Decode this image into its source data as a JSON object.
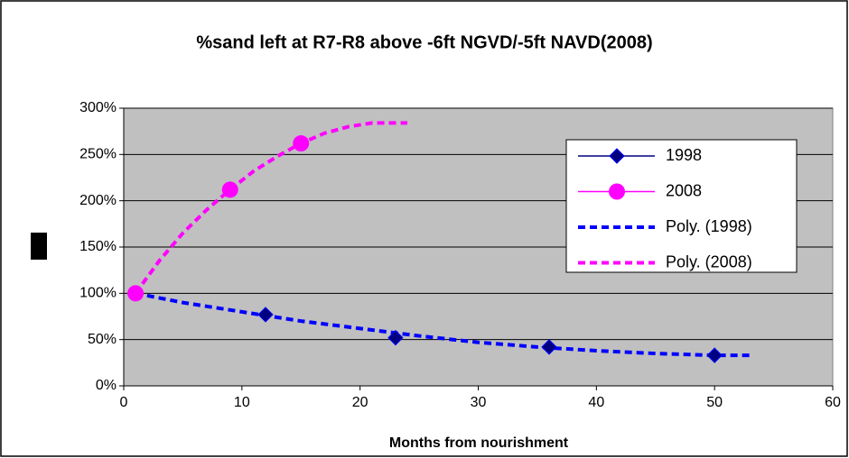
{
  "chart_data": {
    "type": "scatter",
    "title": "%sand left at R7-R8 above -6ft NGVD/-5ft NAVD(2008)",
    "x_label": "Months from nourishment",
    "xlim": [
      0,
      60
    ],
    "xticks": [
      0,
      10,
      20,
      30,
      40,
      50,
      60
    ],
    "ylim": [
      0,
      300
    ],
    "yticks": [
      {
        "value": 0,
        "label": "0%"
      },
      {
        "value": 50,
        "label": "50%"
      },
      {
        "value": 100,
        "label": "100%"
      },
      {
        "value": 150,
        "label": "150%"
      },
      {
        "value": 200,
        "label": "200%"
      },
      {
        "value": 250,
        "label": "250%"
      },
      {
        "value": 300,
        "label": "300%"
      }
    ],
    "grid": true,
    "legend": "right",
    "series": [
      {
        "name": "1998",
        "color": "#000080",
        "marker": "diamond",
        "x": [
          1,
          12,
          23,
          36,
          50
        ],
        "values": [
          100,
          77,
          52,
          42,
          33
        ]
      },
      {
        "name": "2008",
        "color": "#ff00ff",
        "marker": "circle",
        "x": [
          1,
          9,
          15
        ],
        "values": [
          100,
          212,
          262
        ]
      },
      {
        "name": "Poly. (1998)",
        "color": "#0000ff",
        "marker": "none",
        "dash": true,
        "x": [
          1,
          5,
          10,
          15,
          20,
          25,
          30,
          35,
          40,
          45,
          50,
          53
        ],
        "values": [
          100,
          90,
          80,
          70,
          62,
          54,
          47,
          42,
          38,
          35,
          33,
          33
        ]
      },
      {
        "name": "Poly. (2008)",
        "color": "#ff00ff",
        "marker": "none",
        "dash": true,
        "x": [
          1,
          3,
          5,
          7,
          9,
          11,
          13,
          15,
          17,
          19,
          21,
          24
        ],
        "values": [
          100,
          135,
          165,
          190,
          212,
          232,
          248,
          262,
          273,
          280,
          284,
          284
        ]
      }
    ]
  }
}
